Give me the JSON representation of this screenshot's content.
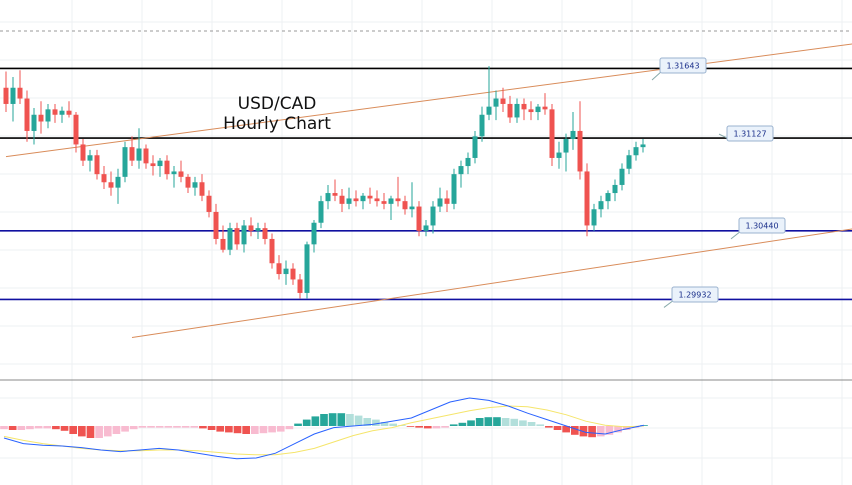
{
  "chart_title": {
    "line1": "USD/CAD",
    "line2": "Hourly Chart"
  },
  "chart_data": {
    "type": "candlestick",
    "symbol": "USD/CAD",
    "timeframe": "Hourly",
    "ylim": [
      1.2935,
      1.3215
    ],
    "levels": [
      {
        "label": "1.31643",
        "value": 1.31643,
        "color": "#000000"
      },
      {
        "label": "1.31127",
        "value": 1.31127,
        "color": "#000000"
      },
      {
        "label": "1.30440",
        "value": 1.3044,
        "color": "#1010a0"
      },
      {
        "label": "1.29932",
        "value": 1.29932,
        "color": "#1010a0"
      }
    ],
    "dotted_level": 1.3192,
    "trend_channel": {
      "color": "#d98c5a",
      "lines": [
        [
          [
            0,
            1.3099
          ],
          [
            155,
            1.3206
          ]
        ],
        [
          [
            18,
            1.2965
          ],
          [
            155,
            1.3072
          ]
        ]
      ]
    },
    "candles": [
      [
        1.315,
        1.3162,
        1.3132,
        1.3138
      ],
      [
        1.3138,
        1.3158,
        1.3125,
        1.315
      ],
      [
        1.315,
        1.3163,
        1.3138,
        1.3142
      ],
      [
        1.3142,
        1.3148,
        1.311,
        1.3118
      ],
      [
        1.3118,
        1.3135,
        1.3108,
        1.313
      ],
      [
        1.313,
        1.314,
        1.3116,
        1.3125
      ],
      [
        1.3125,
        1.3138,
        1.312,
        1.3134
      ],
      [
        1.3134,
        1.3138,
        1.3124,
        1.313
      ],
      [
        1.313,
        1.3136,
        1.3124,
        1.3133
      ],
      [
        1.3133,
        1.314,
        1.3128,
        1.313
      ],
      [
        1.313,
        1.3132,
        1.3102,
        1.3108
      ],
      [
        1.3108,
        1.3112,
        1.3092,
        1.3096
      ],
      [
        1.3096,
        1.3104,
        1.3088,
        1.31
      ],
      [
        1.31,
        1.3104,
        1.3082,
        1.3086
      ],
      [
        1.3086,
        1.3092,
        1.3075,
        1.308
      ],
      [
        1.308,
        1.3088,
        1.307,
        1.3076
      ],
      [
        1.3076,
        1.309,
        1.3064,
        1.3084
      ],
      [
        1.3084,
        1.311,
        1.308,
        1.3106
      ],
      [
        1.3106,
        1.3114,
        1.3092,
        1.3096
      ],
      [
        1.3096,
        1.312,
        1.309,
        1.3105
      ],
      [
        1.3105,
        1.3108,
        1.309,
        1.3094
      ],
      [
        1.3094,
        1.31,
        1.3085,
        1.3092
      ],
      [
        1.3092,
        1.3098,
        1.3084,
        1.3096
      ],
      [
        1.3096,
        1.31,
        1.3082,
        1.3086
      ],
      [
        1.3086,
        1.3092,
        1.3076,
        1.3088
      ],
      [
        1.3088,
        1.3096,
        1.308,
        1.3084
      ],
      [
        1.3084,
        1.3086,
        1.3072,
        1.3076
      ],
      [
        1.3076,
        1.3084,
        1.307,
        1.308
      ],
      [
        1.308,
        1.3086,
        1.3066,
        1.307
      ],
      [
        1.307,
        1.3074,
        1.3054,
        1.3058
      ],
      [
        1.3058,
        1.3064,
        1.3034,
        1.3038
      ],
      [
        1.3038,
        1.3048,
        1.3028,
        1.303
      ],
      [
        1.303,
        1.305,
        1.3026,
        1.3046
      ],
      [
        1.3046,
        1.305,
        1.303,
        1.3034
      ],
      [
        1.3034,
        1.3052,
        1.3028,
        1.3048
      ],
      [
        1.3048,
        1.3054,
        1.304,
        1.3044
      ],
      [
        1.3044,
        1.305,
        1.3038,
        1.3046
      ],
      [
        1.3046,
        1.305,
        1.3034,
        1.3038
      ],
      [
        1.3038,
        1.3042,
        1.3016,
        1.302
      ],
      [
        1.302,
        1.3026,
        1.3008,
        1.3012
      ],
      [
        1.3012,
        1.3022,
        1.3004,
        1.3016
      ],
      [
        1.3016,
        1.302,
        1.3004,
        1.3008
      ],
      [
        1.3008,
        1.3012,
        1.2994,
        1.2998
      ],
      [
        1.2998,
        1.3036,
        1.2994,
        1.3034
      ],
      [
        1.3034,
        1.3052,
        1.3028,
        1.305
      ],
      [
        1.305,
        1.307,
        1.3046,
        1.3066
      ],
      [
        1.3066,
        1.3078,
        1.306,
        1.3072
      ],
      [
        1.3072,
        1.3082,
        1.3066,
        1.307
      ],
      [
        1.307,
        1.3075,
        1.3058,
        1.3064
      ],
      [
        1.3064,
        1.3076,
        1.306,
        1.3068
      ],
      [
        1.3068,
        1.3074,
        1.3062,
        1.3066
      ],
      [
        1.3066,
        1.3072,
        1.306,
        1.307
      ],
      [
        1.307,
        1.3076,
        1.3064,
        1.3068
      ],
      [
        1.3068,
        1.3074,
        1.3062,
        1.3066
      ],
      [
        1.3066,
        1.3072,
        1.306,
        1.3064
      ],
      [
        1.3064,
        1.307,
        1.3052,
        1.3068
      ],
      [
        1.3068,
        1.3084,
        1.3062,
        1.3066
      ],
      [
        1.3066,
        1.307,
        1.3056,
        1.306
      ],
      [
        1.306,
        1.308,
        1.3054,
        1.3062
      ],
      [
        1.3062,
        1.3066,
        1.304,
        1.3044
      ],
      [
        1.3044,
        1.3052,
        1.304,
        1.3048
      ],
      [
        1.3048,
        1.3066,
        1.3042,
        1.3062
      ],
      [
        1.3062,
        1.3076,
        1.3058,
        1.3068
      ],
      [
        1.3068,
        1.3074,
        1.3058,
        1.3064
      ],
      [
        1.3064,
        1.309,
        1.306,
        1.3086
      ],
      [
        1.3086,
        1.3096,
        1.3076,
        1.3092
      ],
      [
        1.3092,
        1.3102,
        1.3086,
        1.3098
      ],
      [
        1.3098,
        1.3118,
        1.3094,
        1.3114
      ],
      [
        1.3114,
        1.3136,
        1.311,
        1.313
      ],
      [
        1.313,
        1.3166,
        1.3126,
        1.3136
      ],
      [
        1.3136,
        1.3148,
        1.3126,
        1.3142
      ],
      [
        1.3142,
        1.315,
        1.3132,
        1.3138
      ],
      [
        1.3138,
        1.3144,
        1.3124,
        1.3128
      ],
      [
        1.3128,
        1.3142,
        1.3124,
        1.3138
      ],
      [
        1.3138,
        1.3142,
        1.3126,
        1.3134
      ],
      [
        1.3134,
        1.314,
        1.3126,
        1.3132
      ],
      [
        1.3132,
        1.3138,
        1.3126,
        1.3136
      ],
      [
        1.3136,
        1.3146,
        1.313,
        1.3134
      ],
      [
        1.3134,
        1.3138,
        1.3092,
        1.3098
      ],
      [
        1.3098,
        1.311,
        1.309,
        1.3102
      ],
      [
        1.3102,
        1.3116,
        1.3088,
        1.3112
      ],
      [
        1.3112,
        1.3132,
        1.3104,
        1.3118
      ],
      [
        1.3118,
        1.314,
        1.3082,
        1.3088
      ],
      [
        1.3088,
        1.3094,
        1.304,
        1.3048
      ],
      [
        1.3048,
        1.3064,
        1.3044,
        1.306
      ],
      [
        1.306,
        1.307,
        1.3054,
        1.3066
      ],
      [
        1.3066,
        1.3074,
        1.306,
        1.3072
      ],
      [
        1.3072,
        1.3082,
        1.3066,
        1.3078
      ],
      [
        1.3078,
        1.3094,
        1.3074,
        1.309
      ],
      [
        1.309,
        1.3104,
        1.3086,
        1.31
      ],
      [
        1.31,
        1.311,
        1.3096,
        1.3106
      ],
      [
        1.3106,
        1.3112,
        1.3102,
        1.3108
      ]
    ],
    "macd": {
      "histogram": [
        -0.4,
        -0.5,
        -0.5,
        -0.4,
        -0.3,
        -0.3,
        -0.4,
        -0.6,
        -1.0,
        -1.3,
        -1.5,
        -1.5,
        -1.3,
        -1.0,
        -0.7,
        -0.4,
        -0.2,
        -0.2,
        -0.2,
        -0.2,
        -0.2,
        -0.2,
        -0.2,
        -0.3,
        -0.5,
        -0.7,
        -0.8,
        -0.9,
        -1.0,
        -1.0,
        -0.9,
        -0.8,
        -0.7,
        -0.4,
        0.3,
        0.8,
        1.2,
        1.5,
        1.6,
        1.6,
        1.5,
        1.3,
        1.0,
        0.8,
        0.5,
        0.3,
        0.1,
        -0.1,
        -0.2,
        -0.3,
        -0.3,
        -0.2,
        0.2,
        0.4,
        0.7,
        1.0,
        1.1,
        1.1,
        1.0,
        0.9,
        0.7,
        0.5,
        0.2,
        -0.2,
        -0.5,
        -0.8,
        -1.1,
        -1.3,
        -1.4,
        -1.3,
        -1.1,
        -0.8,
        -0.5,
        -0.2,
        0.1
      ],
      "macd_line": [
        -1.5,
        -2.2,
        -2.4,
        -2.5,
        -2.7,
        -3.0,
        -3.2,
        -3.0,
        -2.8,
        -3.0,
        -3.4,
        -3.8,
        -4.1,
        -4.0,
        -3.4,
        -2.2,
        -1.0,
        -0.2,
        0.0,
        0.2,
        0.6,
        1.0,
        2.0,
        3.0,
        3.5,
        3.2,
        2.5,
        1.6,
        0.8,
        0.0,
        -0.8,
        -1.0,
        -0.4,
        0.1
      ],
      "signal_line": [
        -1.3,
        -1.8,
        -2.2,
        -2.5,
        -2.8,
        -3.0,
        -3.1,
        -3.1,
        -3.0,
        -3.0,
        -3.1,
        -3.3,
        -3.5,
        -3.6,
        -3.6,
        -3.3,
        -2.8,
        -2.0,
        -1.2,
        -0.6,
        -0.2,
        0.4,
        0.9,
        1.4,
        1.9,
        2.3,
        2.5,
        2.4,
        2.0,
        1.4,
        0.6,
        0.1,
        -0.1,
        0.0
      ],
      "colors": {
        "pos_strong": "#26a69a",
        "pos_weak": "#b2dfdb",
        "neg_strong": "#ef5350",
        "neg_weak": "#f8bbd0",
        "macd": "#2962ff",
        "signal": "#f5e56b"
      }
    },
    "candle_colors": {
      "up": "#26a69a",
      "down": "#ef5350"
    }
  }
}
